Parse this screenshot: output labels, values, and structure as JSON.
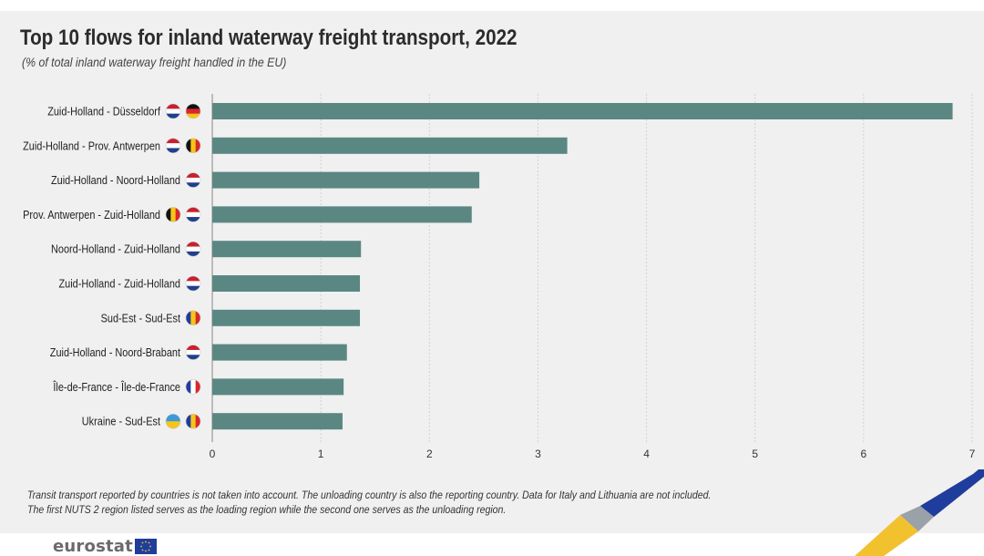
{
  "title": "Top 10 flows for inland waterway freight transport, 2022",
  "subtitle": "(% of total inland waterway freight handled in the EU)",
  "footnote": {
    "line1": "Transit transport reported by countries is not taken into account. The unloading country is also the reporting country. Data for Italy and Lithuania are not included.",
    "line2": "The first NUTS 2 region listed serves as the loading region while the second one serves as the unloading region."
  },
  "logo": {
    "text": "eurostat"
  },
  "colors": {
    "bar": "#5b8782",
    "axis": "#888888",
    "grid": "#d2d2d2",
    "background": "#f0f0f0"
  },
  "chart_data": {
    "type": "bar",
    "orientation": "horizontal",
    "title": "Top 10 flows for inland waterway freight transport, 2022",
    "subtitle": "(% of total inland waterway freight handled in the EU)",
    "categories": [
      "Zuid-Holland - Düsseldorf",
      "Zuid-Holland - Prov. Antwerpen",
      "Zuid-Holland - Noord-Holland",
      "Prov. Antwerpen - Zuid-Holland",
      "Noord-Holland - Zuid-Holland",
      "Zuid-Holland - Zuid-Holland",
      "Sud-Est - Sud-Est",
      "Zuid-Holland - Noord-Brabant",
      "Île-de-France - Île-de-France",
      "Ukraine - Sud-Est"
    ],
    "values": [
      6.82,
      3.27,
      2.46,
      2.39,
      1.37,
      1.36,
      1.36,
      1.24,
      1.21,
      1.2
    ],
    "flags": [
      [
        "nl",
        "de"
      ],
      [
        "nl",
        "be"
      ],
      [
        "nl"
      ],
      [
        "be",
        "nl"
      ],
      [
        "nl"
      ],
      [
        "nl"
      ],
      [
        "ro"
      ],
      [
        "nl"
      ],
      [
        "fr"
      ],
      [
        "ua",
        "ro"
      ]
    ],
    "xlim": [
      0,
      7
    ],
    "xticks": [
      0,
      1,
      2,
      3,
      4,
      5,
      6,
      7
    ],
    "grid": true,
    "gridlines": "vertical"
  }
}
